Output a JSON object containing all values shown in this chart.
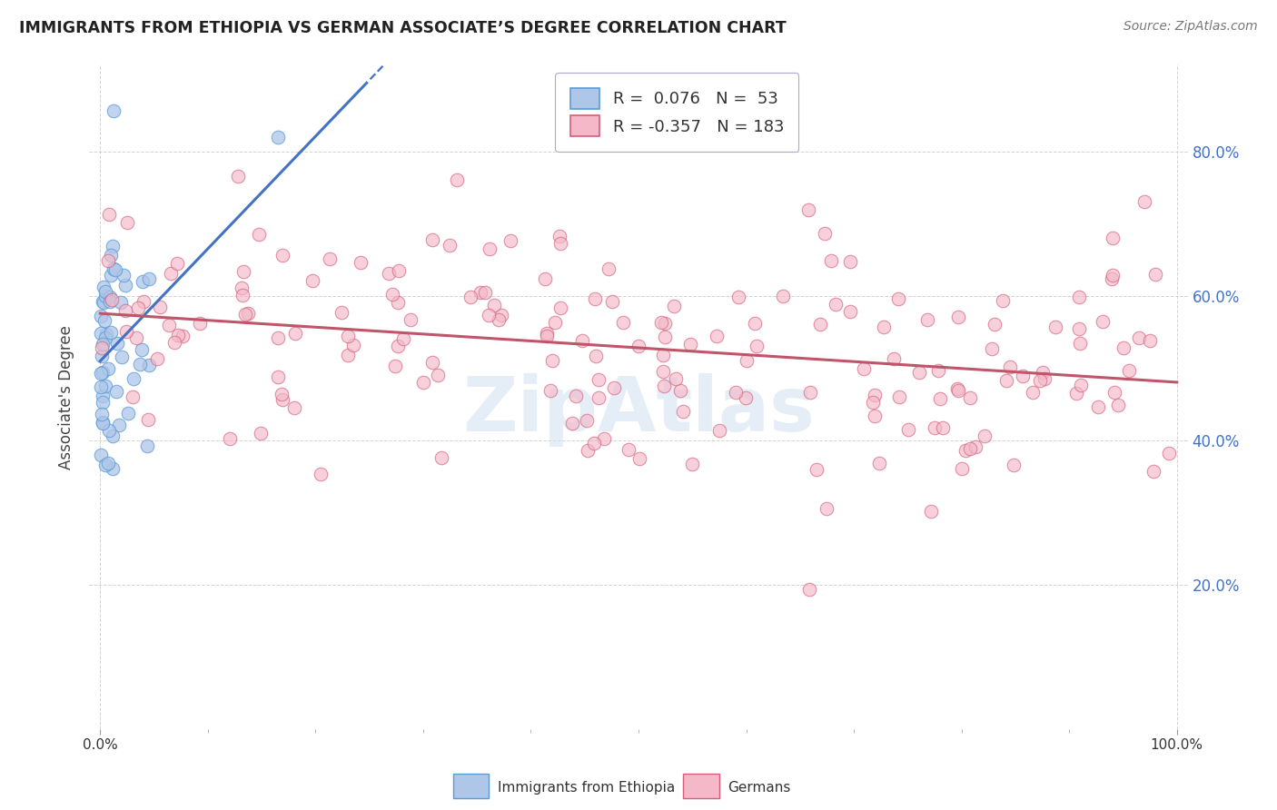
{
  "title": "IMMIGRANTS FROM ETHIOPIA VS GERMAN ASSOCIATE’S DEGREE CORRELATION CHART",
  "source": "Source: ZipAtlas.com",
  "ylabel": "Associate's Degree",
  "legend_blue_label": "Immigrants from Ethiopia",
  "legend_pink_label": "Germans",
  "R_blue": 0.076,
  "N_blue": 53,
  "R_pink": -0.357,
  "N_pink": 183,
  "blue_fill_color": "#aec6e8",
  "blue_edge_color": "#5b9bd5",
  "pink_fill_color": "#f4b8c8",
  "pink_edge_color": "#d45f7a",
  "blue_line_color": "#4472c4",
  "pink_line_color": "#c0556a",
  "background_color": "#ffffff",
  "grid_color": "#c8c8c8",
  "title_color": "#222222",
  "right_axis_color": "#4472c4",
  "watermark_color": "#d0dff0",
  "seed_blue": 42,
  "seed_pink": 7
}
